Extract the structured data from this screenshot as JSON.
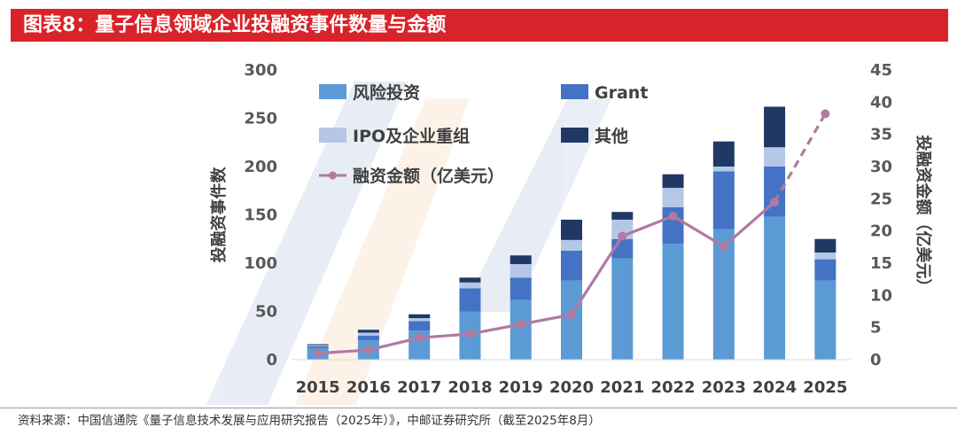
{
  "header": {
    "title": "图表8：量子信息领域企业投融资事件数量与金额"
  },
  "footer": {
    "source": "资料来源：中国信通院《量子信息技术发展与应用研究报告（2025年）》，中邮证券研究所（截至2025年8月）"
  },
  "colors": {
    "header_bg": "#d9232a",
    "vc": "#5b9bd5",
    "grant": "#4472c4",
    "ipo": "#b4c7e7",
    "other": "#203864",
    "line": "#b07aa1"
  },
  "chart_data": {
    "type": "bar",
    "stacked": true,
    "categories": [
      "2015",
      "2016",
      "2017",
      "2018",
      "2019",
      "2020",
      "2021",
      "2022",
      "2023",
      "2024",
      "2025"
    ],
    "series": [
      {
        "name": "风险投资",
        "color": "#5b9bd5",
        "values": [
          12,
          20,
          30,
          50,
          62,
          82,
          105,
          120,
          135,
          148,
          82
        ]
      },
      {
        "name": "Grant",
        "color": "#4472c4",
        "values": [
          2,
          5,
          10,
          24,
          23,
          31,
          20,
          38,
          60,
          52,
          22
        ]
      },
      {
        "name": "IPO及企业重组",
        "color": "#b4c7e7",
        "values": [
          1,
          3,
          3,
          6,
          14,
          11,
          20,
          20,
          5,
          20,
          7
        ]
      },
      {
        "name": "其他",
        "color": "#203864",
        "values": [
          1,
          3,
          4,
          5,
          9,
          21,
          8,
          14,
          26,
          42,
          14
        ]
      }
    ],
    "line_series": {
      "name": "融资金额（亿美元）",
      "axis": "right",
      "color": "#b07aa1",
      "values": [
        1.0,
        1.5,
        3.4,
        4.0,
        5.5,
        7.0,
        19.2,
        22.3,
        17.6,
        24.5,
        38.2
      ],
      "dashed_from_index": 9
    },
    "ylabel": "投融资事件数",
    "y2label": "投融资金额（亿美元）",
    "ylim": [
      0,
      300
    ],
    "y2lim": [
      0,
      45
    ],
    "yticks": [
      "0",
      "50",
      "100",
      "150",
      "200",
      "250",
      "300"
    ],
    "y2ticks": [
      "0",
      "5",
      "10",
      "15",
      "20",
      "25",
      "30",
      "35",
      "40",
      "45"
    ],
    "legend": [
      "风险投资",
      "Grant",
      "IPO及企业重组",
      "其他",
      "融资金额（亿美元）"
    ],
    "legend_position": "top-left"
  }
}
